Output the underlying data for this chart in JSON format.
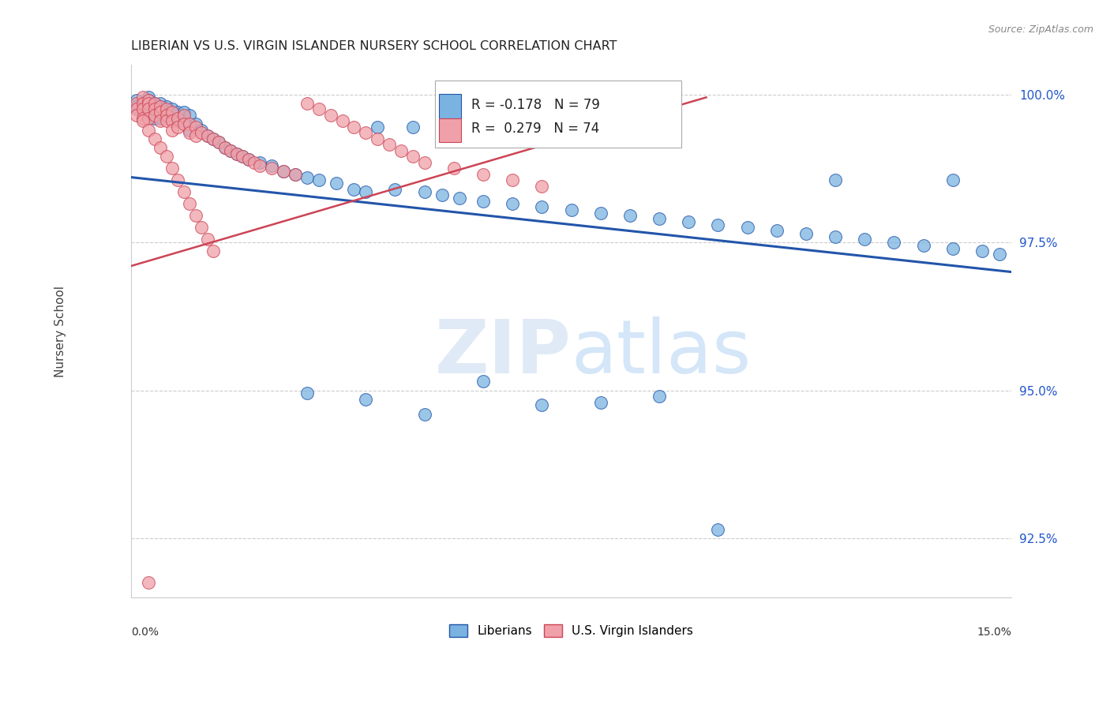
{
  "title": "LIBERIAN VS U.S. VIRGIN ISLANDER NURSERY SCHOOL CORRELATION CHART",
  "source": "Source: ZipAtlas.com",
  "ylabel": "Nursery School",
  "xmin": 0.0,
  "xmax": 0.15,
  "ymin": 0.915,
  "ymax": 1.005,
  "grid_color": "#cccccc",
  "blue_color": "#7ab3e0",
  "pink_color": "#f0a0a8",
  "blue_line_color": "#2255aa",
  "pink_line_color": "#cc4455",
  "legend_blue_R": "-0.178",
  "legend_blue_N": "79",
  "legend_pink_R": "0.279",
  "legend_pink_N": "74",
  "legend_label_blue": "Liberians",
  "legend_label_pink": "U.S. Virgin Islanders",
  "blue_x": [
    0.001,
    0.001,
    0.002,
    0.002,
    0.002,
    0.003,
    0.003,
    0.003,
    0.003,
    0.004,
    0.004,
    0.004,
    0.005,
    0.005,
    0.005,
    0.006,
    0.006,
    0.007,
    0.007,
    0.008,
    0.008,
    0.009,
    0.009,
    0.01,
    0.01,
    0.011,
    0.012,
    0.013,
    0.014,
    0.015,
    0.016,
    0.017,
    0.018,
    0.019,
    0.02,
    0.022,
    0.024,
    0.026,
    0.028,
    0.03,
    0.032,
    0.035,
    0.038,
    0.04,
    0.042,
    0.045,
    0.048,
    0.05,
    0.053,
    0.056,
    0.06,
    0.065,
    0.07,
    0.075,
    0.08,
    0.085,
    0.09,
    0.095,
    0.1,
    0.105,
    0.11,
    0.115,
    0.12,
    0.125,
    0.13,
    0.135,
    0.14,
    0.145,
    0.148,
    0.03,
    0.04,
    0.05,
    0.06,
    0.07,
    0.08,
    0.09,
    0.1,
    0.12,
    0.14
  ],
  "blue_y": [
    0.999,
    0.998,
    0.9985,
    0.9975,
    0.997,
    0.9995,
    0.999,
    0.998,
    0.997,
    0.9985,
    0.9975,
    0.996,
    0.9985,
    0.9975,
    0.996,
    0.998,
    0.9965,
    0.9975,
    0.996,
    0.997,
    0.9955,
    0.997,
    0.9955,
    0.9965,
    0.994,
    0.995,
    0.994,
    0.993,
    0.9925,
    0.992,
    0.991,
    0.9905,
    0.99,
    0.9895,
    0.989,
    0.9885,
    0.988,
    0.987,
    0.9865,
    0.986,
    0.9855,
    0.985,
    0.984,
    0.9835,
    0.9945,
    0.984,
    0.9945,
    0.9835,
    0.983,
    0.9825,
    0.982,
    0.9815,
    0.981,
    0.9805,
    0.98,
    0.9795,
    0.979,
    0.9785,
    0.978,
    0.9775,
    0.977,
    0.9765,
    0.976,
    0.9755,
    0.975,
    0.9745,
    0.974,
    0.9735,
    0.973,
    0.9495,
    0.9485,
    0.946,
    0.9515,
    0.9475,
    0.948,
    0.949,
    0.9265,
    0.9855,
    0.9855
  ],
  "pink_x": [
    0.001,
    0.001,
    0.001,
    0.002,
    0.002,
    0.002,
    0.002,
    0.003,
    0.003,
    0.003,
    0.003,
    0.004,
    0.004,
    0.004,
    0.005,
    0.005,
    0.005,
    0.006,
    0.006,
    0.006,
    0.007,
    0.007,
    0.007,
    0.008,
    0.008,
    0.009,
    0.009,
    0.01,
    0.01,
    0.011,
    0.011,
    0.012,
    0.013,
    0.014,
    0.015,
    0.016,
    0.017,
    0.018,
    0.019,
    0.02,
    0.021,
    0.022,
    0.024,
    0.026,
    0.028,
    0.03,
    0.032,
    0.034,
    0.036,
    0.038,
    0.04,
    0.042,
    0.044,
    0.046,
    0.048,
    0.05,
    0.055,
    0.06,
    0.065,
    0.07,
    0.002,
    0.003,
    0.004,
    0.005,
    0.006,
    0.007,
    0.008,
    0.009,
    0.01,
    0.011,
    0.012,
    0.013,
    0.014,
    0.003
  ],
  "pink_y": [
    0.9985,
    0.9975,
    0.9965,
    0.9995,
    0.9985,
    0.9975,
    0.996,
    0.999,
    0.9985,
    0.9975,
    0.996,
    0.9985,
    0.9975,
    0.9965,
    0.998,
    0.997,
    0.9955,
    0.9975,
    0.9965,
    0.9955,
    0.997,
    0.9955,
    0.994,
    0.996,
    0.9945,
    0.9965,
    0.995,
    0.995,
    0.9935,
    0.9945,
    0.993,
    0.9935,
    0.993,
    0.9925,
    0.992,
    0.991,
    0.9905,
    0.99,
    0.9895,
    0.989,
    0.9885,
    0.988,
    0.9875,
    0.987,
    0.9865,
    0.9985,
    0.9975,
    0.9965,
    0.9955,
    0.9945,
    0.9935,
    0.9925,
    0.9915,
    0.9905,
    0.9895,
    0.9885,
    0.9875,
    0.9865,
    0.9855,
    0.9845,
    0.9955,
    0.994,
    0.9925,
    0.991,
    0.9895,
    0.9875,
    0.9855,
    0.9835,
    0.9815,
    0.9795,
    0.9775,
    0.9755,
    0.9735,
    0.9175
  ],
  "blue_trendline_x": [
    0.0,
    0.15
  ],
  "blue_trendline_y": [
    0.986,
    0.97
  ],
  "pink_trendline_x": [
    0.0,
    0.098
  ],
  "pink_trendline_y": [
    0.971,
    0.9995
  ]
}
